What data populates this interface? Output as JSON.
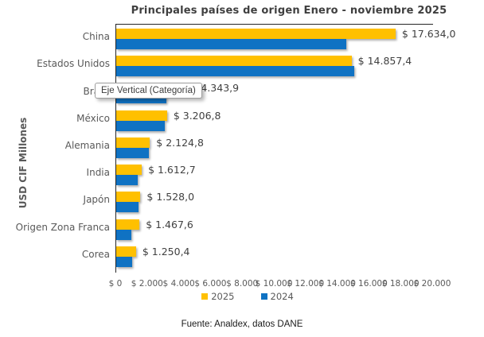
{
  "title": "Principales países de origen Enero - noviembre 2025",
  "y_axis_title": "USD CIF Millones",
  "source_note": "Fuente: Analdex, datos DANE",
  "tooltip": {
    "text": "Eje Vertical (Categoría)"
  },
  "colors": {
    "series_2025": "#FFC000",
    "series_2024": "#0F72C3",
    "axis_line": "#262626",
    "text_gray": "#595959",
    "title_gray": "#3F3F3F"
  },
  "legend": [
    {
      "label": "2025",
      "color": "#FFC000"
    },
    {
      "label": "2024",
      "color": "#0F72C3"
    }
  ],
  "chart_data": {
    "type": "bar",
    "orientation": "horizontal",
    "title": "Principales países de origen Enero - noviembre 2025",
    "ylabel": "USD CIF Millones",
    "xlabel": "",
    "xlim": [
      0,
      20000
    ],
    "x_ticks": [
      "$ 0",
      "$ 2.000",
      "$ 4.000",
      "$ 6.000",
      "$ 8.000",
      "$ 10.000",
      "$ 12.000",
      "$ 14.000",
      "$ 16.000",
      "$ 18.000",
      "$ 20.000"
    ],
    "grid": false,
    "legend_position": "bottom",
    "categories": [
      "China",
      "Estados Unidos",
      "Brasil",
      "México",
      "Alemania",
      "India",
      "Japón",
      "Origen Zona Franca",
      "Corea"
    ],
    "series": [
      {
        "name": "2025",
        "color": "#FFC000",
        "values": [
          17634.0,
          14857.4,
          4343.9,
          3206.8,
          2124.8,
          1612.7,
          1528.0,
          1467.6,
          1250.4
        ],
        "labels": [
          "$ 17.634,0",
          "$ 14.857,4",
          "$ 4.343,9",
          "$ 3.206,8",
          "$ 2.124,8",
          "$ 1.612,7",
          "$ 1.528,0",
          "$ 1.467,6",
          "$ 1.250,4"
        ]
      },
      {
        "name": "2024",
        "color": "#0F72C3",
        "values": [
          14500,
          15000,
          3150,
          3050,
          2050,
          1350,
          1400,
          950,
          1000
        ],
        "labels": null
      }
    ]
  }
}
